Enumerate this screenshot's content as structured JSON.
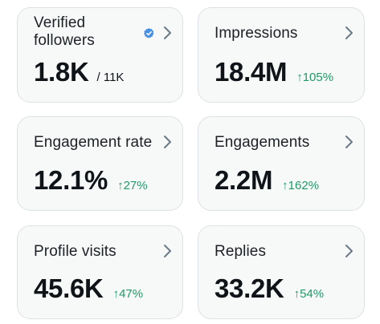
{
  "cards": [
    {
      "label": "Verified followers",
      "value": "1.8K",
      "total": "/ 11K",
      "verified_badge": true,
      "accent": "#4a90e2"
    },
    {
      "label": "Impressions",
      "value": "18.4M",
      "change": "↑105%"
    },
    {
      "label": "Engagement rate",
      "value": "12.1%",
      "change": "↑27%"
    },
    {
      "label": "Engagements",
      "value": "2.2M",
      "change": "↑162%"
    },
    {
      "label": "Profile visits",
      "value": "45.6K",
      "change": "↑47%"
    },
    {
      "label": "Replies",
      "value": "33.2K",
      "change": "↑54%"
    }
  ],
  "colors": {
    "positive_change": "#1f9b68",
    "card_background": "#f7f8f8",
    "card_border": "#dde1e4",
    "chevron": "#6b7a86"
  },
  "icons": {
    "chevron": "chevron-right-icon",
    "verified": "verified-badge-icon"
  }
}
